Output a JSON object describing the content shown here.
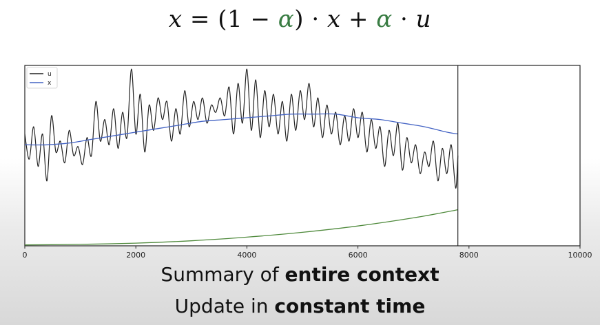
{
  "formula": {
    "x1": "x",
    "eq": "=",
    "paren_open": "(1",
    "minus": "−",
    "alpha1": "α",
    "paren_close": ")",
    "dot1": "·",
    "x2": "x",
    "plus": "+",
    "alpha2": "α",
    "dot2": "·",
    "u": "u",
    "alpha_color": "#3a7d44"
  },
  "captions": {
    "line1_prefix": "Summary of ",
    "line1_bold": "entire context",
    "line2_prefix": "Update in ",
    "line2_bold": "constant time"
  },
  "chart_data": {
    "type": "line",
    "xlim": [
      0,
      10000
    ],
    "xticks": [
      0,
      2000,
      4000,
      6000,
      8000,
      10000
    ],
    "xtick_labels": [
      "0",
      "2000",
      "4000",
      "6000",
      "8000",
      "10000"
    ],
    "ylim": [
      0,
      1
    ],
    "grid": false,
    "legend": {
      "placement": "top-left",
      "entries": [
        "u",
        "x"
      ]
    },
    "current_step_marker": 7800,
    "series": [
      {
        "name": "u",
        "color": "#222222",
        "x": [
          0,
          80,
          160,
          240,
          320,
          400,
          480,
          560,
          640,
          720,
          800,
          880,
          960,
          1040,
          1120,
          1200,
          1280,
          1360,
          1440,
          1520,
          1600,
          1680,
          1760,
          1840,
          1920,
          2000,
          2080,
          2160,
          2240,
          2320,
          2400,
          2480,
          2560,
          2640,
          2720,
          2800,
          2880,
          2960,
          3040,
          3120,
          3200,
          3280,
          3360,
          3440,
          3520,
          3600,
          3680,
          3760,
          3840,
          3920,
          4000,
          4080,
          4160,
          4240,
          4320,
          4400,
          4480,
          4560,
          4640,
          4720,
          4800,
          4880,
          4960,
          5040,
          5120,
          5200,
          5280,
          5360,
          5440,
          5520,
          5600,
          5680,
          5760,
          5840,
          5920,
          6000,
          6080,
          6160,
          6240,
          6320,
          6400,
          6480,
          6560,
          6640,
          6720,
          6800,
          6880,
          6960,
          7040,
          7120,
          7200,
          7280,
          7360,
          7440,
          7520,
          7600,
          7680,
          7760,
          7800
        ],
        "y": [
          0.62,
          0.48,
          0.66,
          0.44,
          0.62,
          0.36,
          0.72,
          0.52,
          0.58,
          0.46,
          0.64,
          0.5,
          0.55,
          0.45,
          0.6,
          0.5,
          0.8,
          0.58,
          0.7,
          0.56,
          0.76,
          0.54,
          0.74,
          0.6,
          0.98,
          0.62,
          0.84,
          0.52,
          0.78,
          0.64,
          0.82,
          0.7,
          0.8,
          0.58,
          0.76,
          0.62,
          0.86,
          0.66,
          0.8,
          0.7,
          0.82,
          0.68,
          0.78,
          0.74,
          0.82,
          0.72,
          0.88,
          0.62,
          0.9,
          0.68,
          0.98,
          0.64,
          0.92,
          0.6,
          0.86,
          0.66,
          0.84,
          0.62,
          0.8,
          0.58,
          0.84,
          0.64,
          0.86,
          0.7,
          0.9,
          0.66,
          0.82,
          0.6,
          0.78,
          0.62,
          0.74,
          0.56,
          0.72,
          0.58,
          0.76,
          0.6,
          0.74,
          0.52,
          0.7,
          0.54,
          0.66,
          0.44,
          0.64,
          0.5,
          0.68,
          0.42,
          0.6,
          0.46,
          0.56,
          0.4,
          0.52,
          0.44,
          0.58,
          0.36,
          0.54,
          0.4,
          0.56,
          0.32,
          0.5
        ]
      },
      {
        "name": "x",
        "color": "#4363c4",
        "x": [
          0,
          400,
          800,
          1200,
          1600,
          2000,
          2400,
          2800,
          3200,
          3600,
          4000,
          4400,
          4800,
          5200,
          5600,
          6000,
          6400,
          6800,
          7200,
          7600,
          7800
        ],
        "y": [
          0.56,
          0.56,
          0.57,
          0.59,
          0.61,
          0.63,
          0.65,
          0.67,
          0.69,
          0.7,
          0.71,
          0.72,
          0.73,
          0.73,
          0.73,
          0.71,
          0.7,
          0.68,
          0.66,
          0.63,
          0.62
        ]
      },
      {
        "color": "#4f8a3c",
        "x": [
          0,
          1000,
          2000,
          3000,
          4000,
          5000,
          6000,
          7000,
          7800
        ],
        "y": [
          0.005,
          0.008,
          0.015,
          0.028,
          0.048,
          0.075,
          0.11,
          0.155,
          0.2
        ]
      }
    ]
  }
}
